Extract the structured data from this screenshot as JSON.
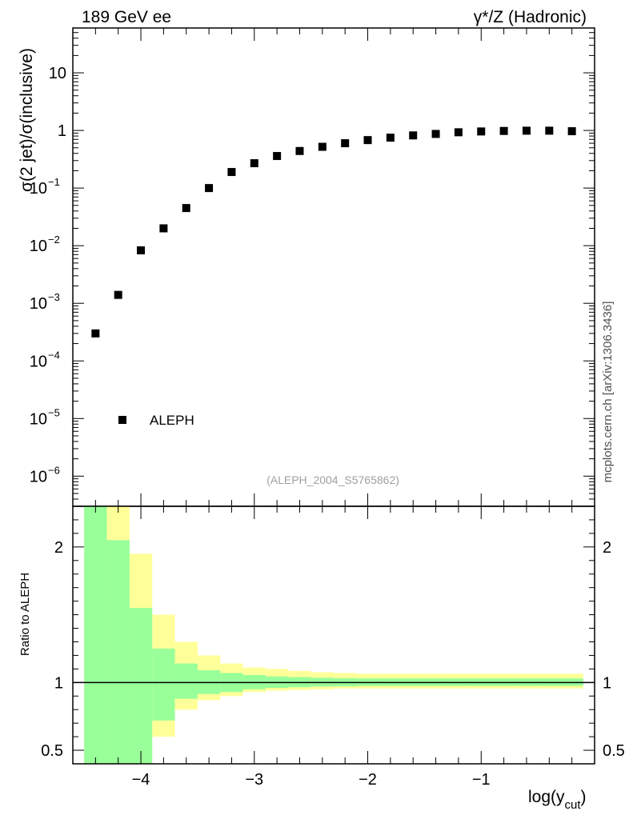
{
  "header": {
    "left": "189 GeV ee",
    "right": "γ*/Z (Hadronic)"
  },
  "side_label": "mcplots.cern.ch [arXiv:1306.3436]",
  "analysis_label": "(ALEPH_2004_S5765862)",
  "colors": {
    "marker": "#000000",
    "band_inner": "#99ff99",
    "band_outer": "#ffff99",
    "analysis_label": "#a0a0a0"
  },
  "chart_data": [
    {
      "type": "scatter",
      "ylabel_main": "σ(2 jet)/σ(inclusive)",
      "xlabel": "",
      "yscale": "log",
      "ylim": [
        3e-07,
        60
      ],
      "xlim": [
        -4.6,
        0
      ],
      "y_ticks": [
        "10",
        "1",
        "10^-1",
        "10^-2",
        "10^-3",
        "10^-4",
        "10^-5",
        "10^-6"
      ],
      "legend": {
        "position": "lower-left",
        "entries": [
          "ALEPH"
        ]
      },
      "series": [
        {
          "name": "ALEPH",
          "x": [
            -4.4,
            -4.2,
            -4.0,
            -3.8,
            -3.6,
            -3.4,
            -3.2,
            -3.0,
            -2.8,
            -2.6,
            -2.4,
            -2.2,
            -2.0,
            -1.8,
            -1.6,
            -1.4,
            -1.2,
            -1.0,
            -0.8,
            -0.6,
            -0.4,
            -0.2
          ],
          "y": [
            0.0003,
            0.0014,
            0.0083,
            0.02,
            0.045,
            0.1,
            0.19,
            0.27,
            0.36,
            0.44,
            0.52,
            0.6,
            0.68,
            0.75,
            0.82,
            0.87,
            0.93,
            0.96,
            0.98,
            0.99,
            0.99,
            0.97
          ]
        }
      ]
    },
    {
      "type": "area",
      "ylabel": "Ratio to ALEPH",
      "xlabel": "log(y_cut)",
      "ylim": [
        0.4,
        2.3
      ],
      "xlim": [
        -4.6,
        0
      ],
      "x_ticks": [
        "−4",
        "−3",
        "−2",
        "−1"
      ],
      "y_ticks": [
        "2",
        "1",
        "0.5"
      ],
      "reference_line": 1,
      "bin_edges": [
        -4.5,
        -4.3,
        -4.1,
        -3.9,
        -3.7,
        -3.5,
        -3.3,
        -3.1,
        -2.9,
        -2.7,
        -2.5,
        -2.3,
        -2.1,
        -1.9,
        -1.7,
        -1.5,
        -1.3,
        -1.1,
        -0.9,
        -0.7,
        -0.5,
        -0.3,
        -0.1
      ],
      "series": [
        {
          "band": "outer",
          "low": [
            0.4,
            0.4,
            0.55,
            0.6,
            0.8,
            0.87,
            0.9,
            0.93,
            0.94,
            0.945,
            0.95,
            0.955,
            0.955,
            0.955,
            0.955,
            0.955,
            0.955,
            0.955,
            0.955,
            0.955,
            0.955,
            0.955
          ],
          "high": [
            2.3,
            2.3,
            1.95,
            1.5,
            1.3,
            1.2,
            1.14,
            1.11,
            1.1,
            1.085,
            1.075,
            1.07,
            1.065,
            1.065,
            1.065,
            1.065,
            1.065,
            1.065,
            1.065,
            1.065,
            1.065,
            1.065
          ]
        },
        {
          "band": "inner",
          "low": [
            0.4,
            0.4,
            0.4,
            0.72,
            0.88,
            0.915,
            0.93,
            0.95,
            0.96,
            0.965,
            0.97,
            0.972,
            0.975,
            0.975,
            0.975,
            0.975,
            0.975,
            0.975,
            0.975,
            0.975,
            0.975,
            0.975
          ],
          "high": [
            2.3,
            2.05,
            1.55,
            1.25,
            1.14,
            1.09,
            1.07,
            1.055,
            1.045,
            1.04,
            1.035,
            1.032,
            1.03,
            1.03,
            1.03,
            1.03,
            1.03,
            1.03,
            1.03,
            1.03,
            1.03,
            1.03
          ]
        }
      ]
    }
  ]
}
